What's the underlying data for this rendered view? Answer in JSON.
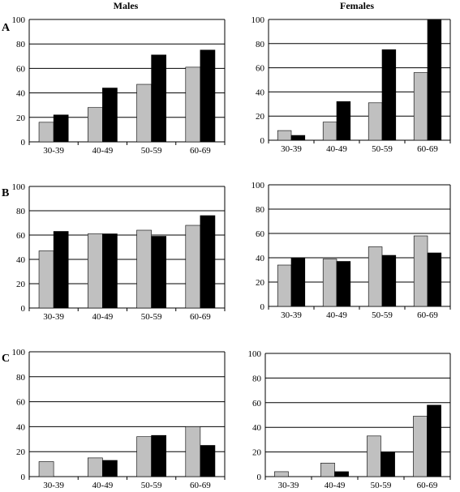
{
  "column_titles": {
    "left": "Males",
    "right": "Females"
  },
  "row_labels": [
    "A",
    "B",
    "C"
  ],
  "colors": {
    "series_1": "#c0c0c0",
    "series_2": "#000000",
    "grid": "#000000"
  },
  "chart_data": [
    {
      "id": "A-males",
      "type": "bar",
      "row": "A",
      "column": "Males",
      "categories": [
        "30-39",
        "40-49",
        "50-59",
        "60-69"
      ],
      "series": [
        {
          "values": [
            16,
            28,
            47,
            61
          ]
        },
        {
          "values": [
            22,
            44,
            71,
            75
          ]
        }
      ],
      "ylim": [
        0,
        100
      ],
      "yticks": [
        0,
        20,
        40,
        60,
        80,
        100
      ],
      "grid": true
    },
    {
      "id": "A-females",
      "type": "bar",
      "row": "A",
      "column": "Females",
      "categories": [
        "30-39",
        "40-49",
        "50-59",
        "60-69"
      ],
      "series": [
        {
          "values": [
            8,
            15,
            31,
            56
          ]
        },
        {
          "values": [
            4,
            32,
            75,
            100
          ]
        }
      ],
      "ylim": [
        0,
        100
      ],
      "yticks": [
        0,
        20,
        40,
        60,
        80,
        100
      ],
      "grid": true
    },
    {
      "id": "B-males",
      "type": "bar",
      "row": "B",
      "column": "Males",
      "categories": [
        "30-39",
        "40-49",
        "50-59",
        "60-69"
      ],
      "series": [
        {
          "values": [
            47,
            61,
            64,
            68
          ]
        },
        {
          "values": [
            63,
            61,
            59,
            76
          ]
        }
      ],
      "ylim": [
        0,
        100
      ],
      "yticks": [
        0,
        20,
        40,
        60,
        80,
        100
      ],
      "grid": true
    },
    {
      "id": "B-females",
      "type": "bar",
      "row": "B",
      "column": "Females",
      "categories": [
        "30-39",
        "40-49",
        "50-59",
        "60-69"
      ],
      "series": [
        {
          "values": [
            34,
            39,
            49,
            58
          ]
        },
        {
          "values": [
            40,
            37,
            42,
            44
          ]
        }
      ],
      "ylim": [
        0,
        100
      ],
      "yticks": [
        0,
        20,
        40,
        60,
        80,
        100
      ],
      "grid": true
    },
    {
      "id": "C-males",
      "type": "bar",
      "row": "C",
      "column": "Males",
      "categories": [
        "30-39",
        "40-49",
        "50-59",
        "60-69"
      ],
      "series": [
        {
          "values": [
            12,
            15,
            32,
            40
          ]
        },
        {
          "values": [
            0,
            13,
            33,
            25
          ]
        }
      ],
      "ylim": [
        0,
        100
      ],
      "yticks": [
        0,
        20,
        40,
        60,
        80,
        100
      ],
      "grid": true
    },
    {
      "id": "C-females",
      "type": "bar",
      "row": "C",
      "column": "Females",
      "categories": [
        "30-39",
        "40-49",
        "50-59",
        "60-69"
      ],
      "series": [
        {
          "values": [
            4,
            11,
            33,
            49
          ]
        },
        {
          "values": [
            0,
            4,
            20,
            58
          ]
        }
      ],
      "ylim": [
        0,
        100
      ],
      "yticks": [
        0,
        20,
        40,
        60,
        80,
        100
      ],
      "grid": true
    }
  ]
}
